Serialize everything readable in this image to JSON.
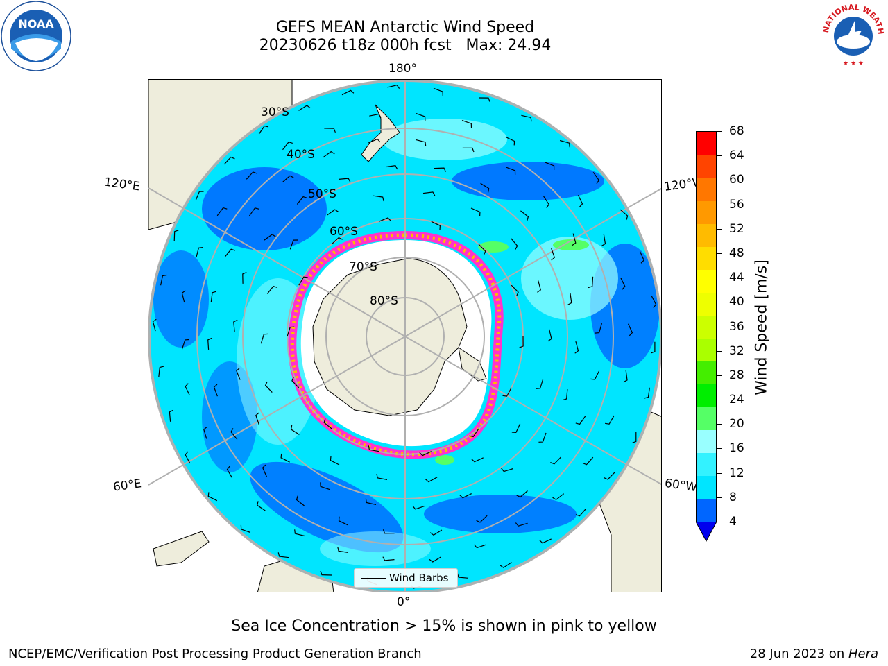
{
  "header": {
    "title_line1": "GEFS MEAN Antarctic Wind Speed",
    "title_line2": "20230626 t18z 000h fcst   Max: 24.94"
  },
  "map": {
    "longitude_labels": {
      "top": "180°",
      "bottom": "0°",
      "upper_left": "120°E",
      "upper_right": "120°W",
      "lower_left": "60°E",
      "lower_right": "60°W"
    },
    "latitude_labels": [
      "30°S",
      "40°S",
      "50°S",
      "60°S",
      "70°S",
      "80°S"
    ],
    "legend_label": "Wind Barbs"
  },
  "colorbar": {
    "label": "Wind Speed [m/s]",
    "ticks": [
      "68",
      "64",
      "60",
      "56",
      "52",
      "48",
      "44",
      "40",
      "36",
      "32",
      "28",
      "24",
      "20",
      "16",
      "12",
      "8",
      "4"
    ],
    "colors_bottom_to_top": [
      "#0066ff",
      "#00e5ff",
      "#33f2ff",
      "#99ffff",
      "#55ff66",
      "#00ee00",
      "#44ee00",
      "#aaff00",
      "#ccff00",
      "#eeff00",
      "#ffff00",
      "#ffdd00",
      "#ffbb00",
      "#ff9900",
      "#ff7700",
      "#ff4400",
      "#ff0000"
    ],
    "extend_color": "#0000ee"
  },
  "footnote": "Sea Ice Concentration > 15% is shown in pink to yellow",
  "footer": {
    "left": "NCEP/EMC/Verification Post Processing Product Generation Branch",
    "right_prefix": "28 Jun 2023 on ",
    "right_machine": "Hera"
  },
  "logos": {
    "left": "NOAA",
    "right_arc_text": "NATIONAL WEATHER SERVICE"
  }
}
